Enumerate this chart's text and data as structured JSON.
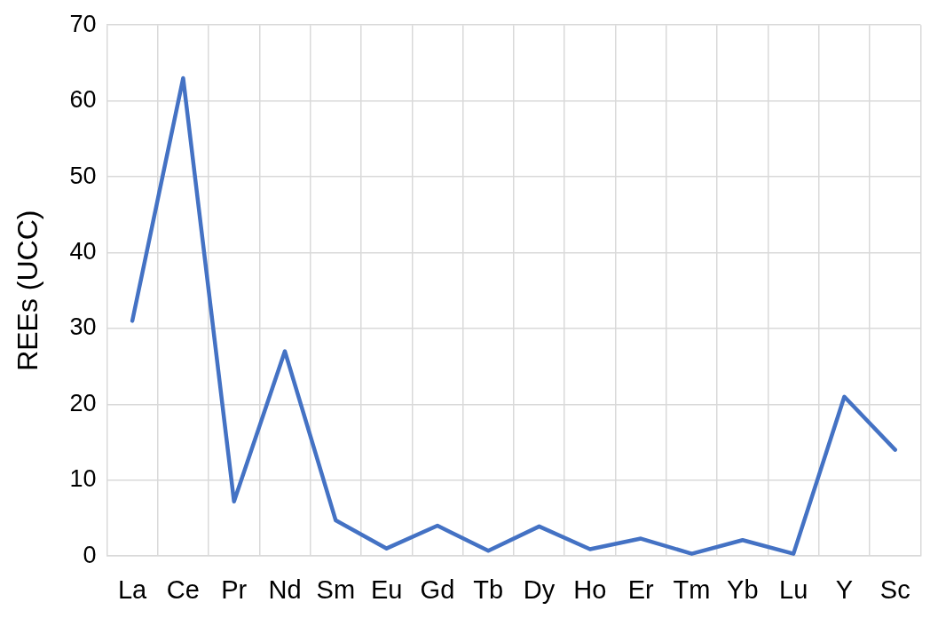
{
  "chart_data": {
    "type": "line",
    "ylabel": "REEs (UCC)",
    "categories": [
      "La",
      "Ce",
      "Pr",
      "Nd",
      "Sm",
      "Eu",
      "Gd",
      "Tb",
      "Dy",
      "Ho",
      "Er",
      "Tm",
      "Yb",
      "Lu",
      "Y",
      "Sc"
    ],
    "series": [
      {
        "color": "#4472c4",
        "values": [
          31,
          63,
          7.2,
          27,
          4.7,
          1.0,
          4.0,
          0.7,
          3.9,
          0.9,
          2.3,
          0.3,
          2.1,
          0.3,
          21,
          14
        ]
      }
    ],
    "ylim": [
      0,
      70
    ],
    "yticks": [
      0,
      10,
      20,
      30,
      40,
      50,
      60,
      70
    ],
    "grid": true,
    "marker": "none",
    "line_style": "solid"
  }
}
